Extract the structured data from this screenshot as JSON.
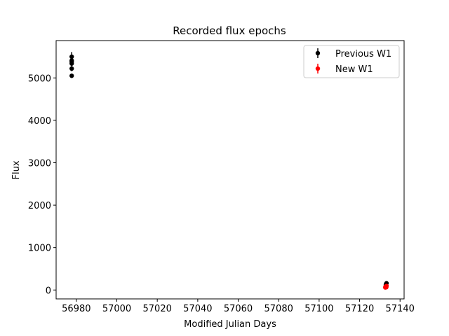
{
  "chart_data": {
    "type": "scatter",
    "title": "Recorded flux epochs",
    "xlabel": "Modified Julian Days",
    "ylabel": "Flux",
    "xlim": [
      56970,
      57142
    ],
    "ylim": [
      -210,
      5880
    ],
    "xticks": [
      56980,
      57000,
      57020,
      57040,
      57060,
      57080,
      57100,
      57120,
      57140
    ],
    "yticks": [
      0,
      1000,
      2000,
      3000,
      4000,
      5000
    ],
    "grid": false,
    "legend_position": "top-right",
    "series": [
      {
        "name": "Previous W1",
        "color": "#000000",
        "marker": "circle",
        "points": [
          {
            "x": 56977.7,
            "y": 5050,
            "err": 50
          },
          {
            "x": 56977.7,
            "y": 5220,
            "err": 60
          },
          {
            "x": 56977.7,
            "y": 5340,
            "err": 60
          },
          {
            "x": 56977.7,
            "y": 5380,
            "err": 60
          },
          {
            "x": 56977.7,
            "y": 5410,
            "err": 60
          },
          {
            "x": 56977.7,
            "y": 5500,
            "err": 110
          },
          {
            "x": 57133.0,
            "y": 90,
            "err": 25
          },
          {
            "x": 57133.0,
            "y": 110,
            "err": 25
          },
          {
            "x": 57133.0,
            "y": 130,
            "err": 25
          },
          {
            "x": 57133.3,
            "y": 160,
            "err": 25
          }
        ]
      },
      {
        "name": "New W1",
        "color": "#ff0000",
        "marker": "circle",
        "points": [
          {
            "x": 57132.7,
            "y": 60,
            "err": 20
          },
          {
            "x": 57132.8,
            "y": 75,
            "err": 20
          },
          {
            "x": 57133.0,
            "y": 85,
            "err": 20
          },
          {
            "x": 57133.2,
            "y": 65,
            "err": 20
          },
          {
            "x": 57133.3,
            "y": 95,
            "err": 20
          }
        ]
      }
    ]
  }
}
